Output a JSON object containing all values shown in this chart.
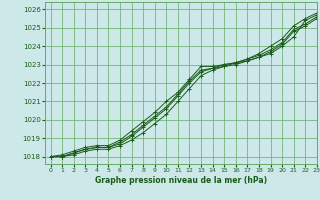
{
  "title": "Graphe pression niveau de la mer (hPa)",
  "bg_color": "#cce8e8",
  "grid_color": "#66aa66",
  "line_color": "#1a5c1a",
  "xlim": [
    -0.5,
    23
  ],
  "ylim": [
    1017.6,
    1026.4
  ],
  "yticks": [
    1018,
    1019,
    1020,
    1021,
    1022,
    1023,
    1024,
    1025,
    1026
  ],
  "xticks": [
    0,
    1,
    2,
    3,
    4,
    5,
    6,
    7,
    8,
    9,
    10,
    11,
    12,
    13,
    14,
    15,
    16,
    17,
    18,
    19,
    20,
    21,
    22,
    23
  ],
  "series": [
    [
      1018.0,
      1018.1,
      1018.3,
      1018.5,
      1018.6,
      1018.6,
      1018.9,
      1019.4,
      1019.9,
      1020.4,
      1021.0,
      1021.5,
      1022.2,
      1022.9,
      1022.9,
      1023.0,
      1023.1,
      1023.2,
      1023.4,
      1023.6,
      1024.0,
      1024.5,
      1025.4,
      1025.7
    ],
    [
      1018.0,
      1018.0,
      1018.2,
      1018.4,
      1018.5,
      1018.5,
      1018.7,
      1019.1,
      1019.6,
      1020.1,
      1020.6,
      1021.3,
      1022.0,
      1022.6,
      1022.8,
      1022.9,
      1023.0,
      1023.2,
      1023.4,
      1023.7,
      1024.1,
      1024.8,
      1025.1,
      1025.5
    ],
    [
      1018.0,
      1018.0,
      1018.2,
      1018.4,
      1018.5,
      1018.5,
      1018.8,
      1019.2,
      1019.7,
      1020.2,
      1020.7,
      1021.4,
      1022.1,
      1022.7,
      1022.8,
      1023.0,
      1023.1,
      1023.3,
      1023.5,
      1023.8,
      1024.2,
      1024.9,
      1025.2,
      1025.6
    ],
    [
      1018.0,
      1018.0,
      1018.1,
      1018.3,
      1018.4,
      1018.4,
      1018.6,
      1018.9,
      1019.3,
      1019.8,
      1020.3,
      1021.0,
      1021.7,
      1022.4,
      1022.7,
      1022.9,
      1023.1,
      1023.3,
      1023.6,
      1024.0,
      1024.4,
      1025.1,
      1025.5,
      1025.8
    ]
  ]
}
